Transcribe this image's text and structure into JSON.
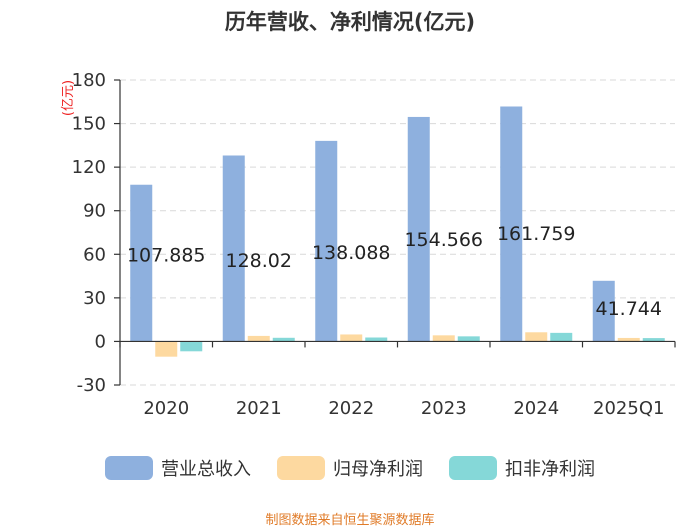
{
  "chart_data": {
    "type": "bar",
    "title": "历年营收、净利情况(亿元)",
    "ylabel": "(亿元)",
    "categories": [
      "2020",
      "2021",
      "2022",
      "2023",
      "2024",
      "2025Q1"
    ],
    "series": [
      {
        "name": "营业总收入",
        "color": "#8eb0de",
        "values": [
          107.885,
          128.02,
          138.088,
          154.566,
          161.759,
          41.744
        ]
      },
      {
        "name": "归母净利润",
        "color": "#fdd9a0",
        "values": [
          -10.5,
          3.8,
          4.8,
          4.2,
          6.3,
          2.4
        ]
      },
      {
        "name": "扣非净利润",
        "color": "#85d8d8",
        "values": [
          -6.8,
          2.5,
          2.7,
          3.5,
          5.9,
          2.3
        ]
      }
    ],
    "data_labels": [
      "107.885",
      "128.02",
      "138.088",
      "154.566",
      "161.759",
      "41.744"
    ],
    "yticks": [
      -30,
      0,
      30,
      60,
      90,
      120,
      150,
      180
    ],
    "ylim": [
      -30,
      180
    ],
    "grid": true,
    "legend": "bottom"
  },
  "footer": {
    "source": "制图数据来自恒生聚源数据库"
  }
}
